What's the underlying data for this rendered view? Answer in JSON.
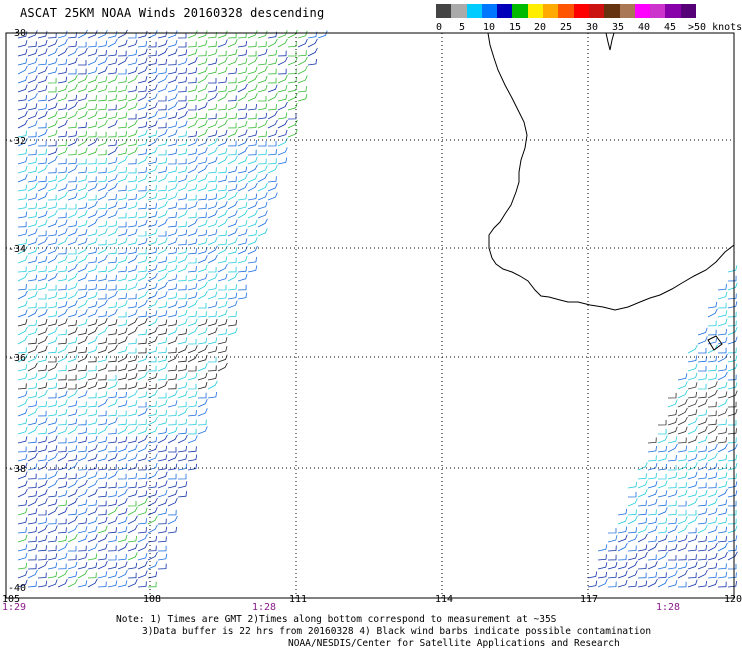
{
  "title": "ASCAT 25KM NOAA Winds 20160328 descending",
  "legend": {
    "colors": [
      "#444444",
      "#aaaaaa",
      "#00ccff",
      "#0077ff",
      "#0000bb",
      "#00bb00",
      "#ffee00",
      "#ffaa00",
      "#ff5500",
      "#ff0000",
      "#cc1111",
      "#663311",
      "#aa7755",
      "#ff00ff",
      "#cc33cc",
      "#8800aa",
      "#550077"
    ],
    "labels": [
      "0",
      "5",
      "10",
      "15",
      "20",
      "25",
      "30",
      "35",
      "40",
      "45",
      ">50 knots"
    ]
  },
  "map": {
    "lon_labels": [
      "105",
      "108",
      "111",
      "114",
      "117",
      "120"
    ],
    "lat_labels": [
      "-30",
      "-32",
      "-34",
      "-36",
      "-38",
      "-40"
    ],
    "time_labels": [
      "1:29",
      "1:28",
      "1:28"
    ]
  },
  "notes": {
    "line1": "Note: 1) Times are GMT 2)Times along bottom correspond to measurement at ~35S",
    "line2": "3)Data buffer is 22 hrs from 20160328 4) Black wind barbs indicate possible contamination",
    "line3": "NOAA/NESDIS/Center for Satellite Applications and Research"
  }
}
